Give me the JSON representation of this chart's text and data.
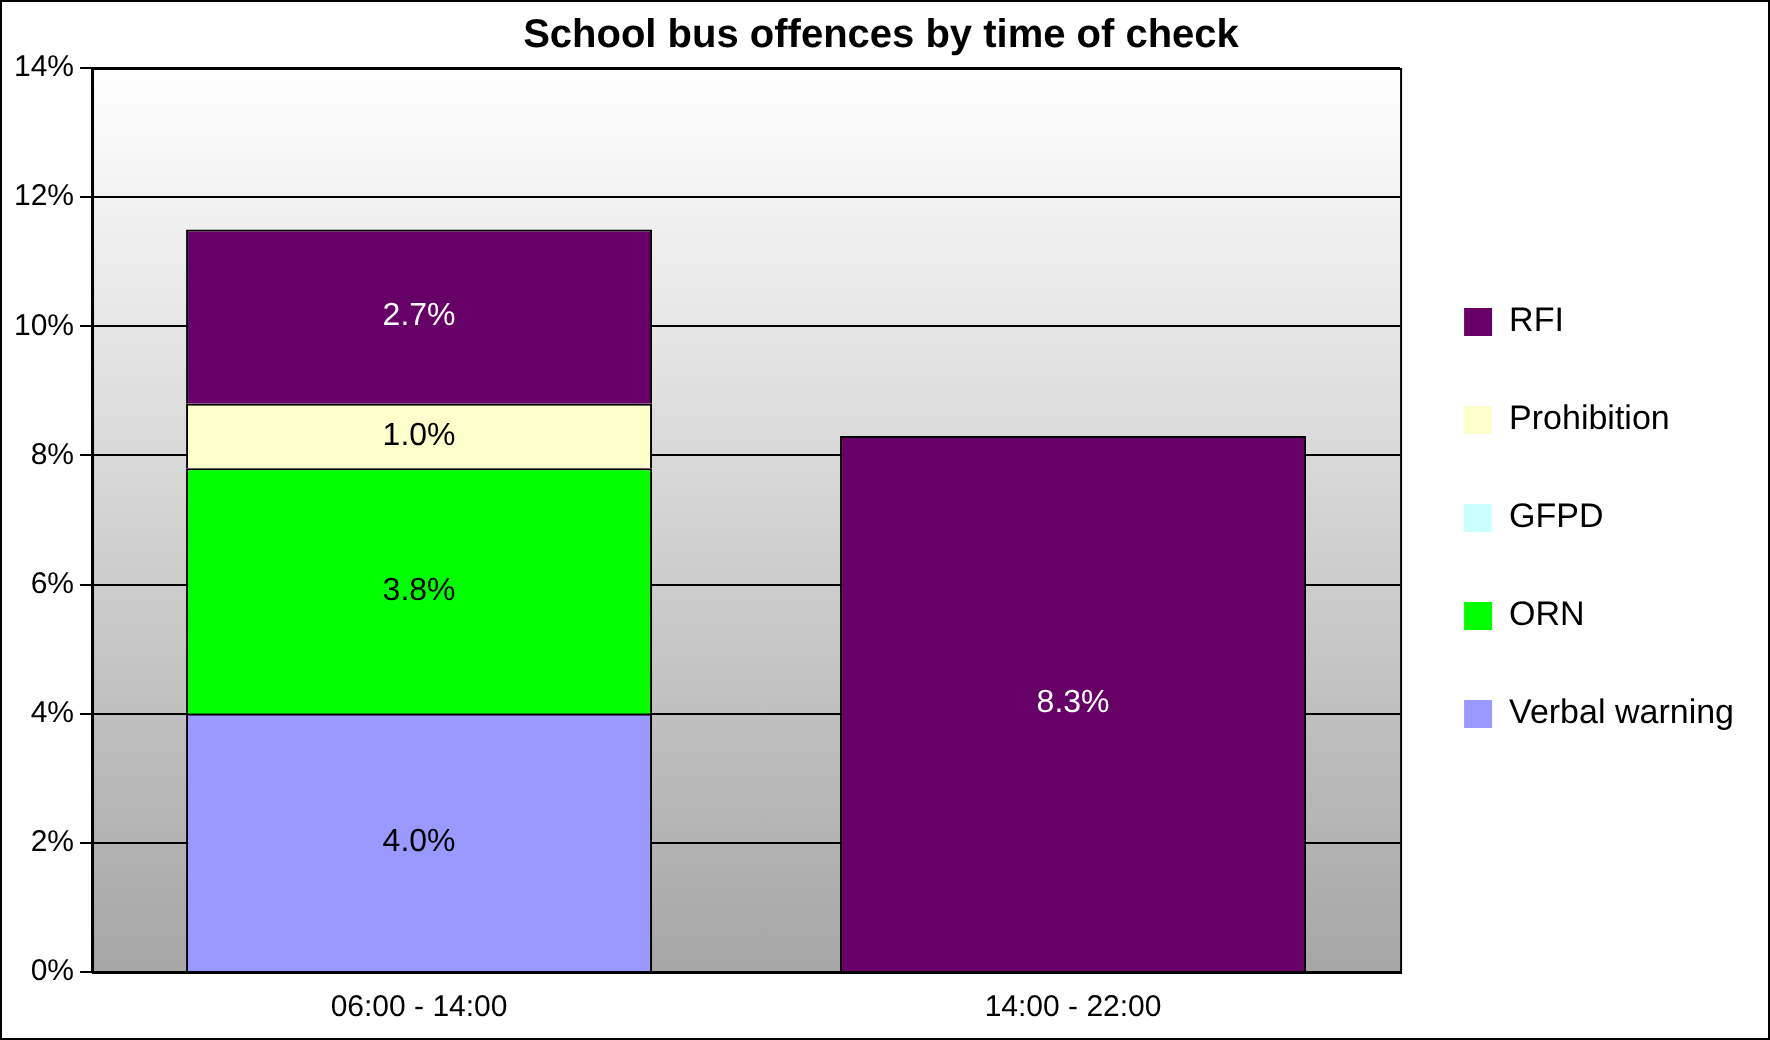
{
  "chart_data": {
    "type": "bar",
    "title": "School bus offences by time of check",
    "categories": [
      "06:00 - 14:00",
      "14:00 - 22:00"
    ],
    "stacked": true,
    "series": [
      {
        "name": "Verbal warning",
        "color": "#9999ff",
        "values": [
          4.0,
          null
        ],
        "value_labels": [
          "4.0%",
          null
        ]
      },
      {
        "name": "ORN",
        "color": "#00ff00",
        "values": [
          3.8,
          null
        ],
        "value_labels": [
          "3.8%",
          null
        ]
      },
      {
        "name": "GFPD",
        "color": "#ccffff",
        "values": [
          null,
          null
        ]
      },
      {
        "name": "Prohibition",
        "color": "#ffffcc",
        "values": [
          1.0,
          null
        ],
        "value_labels": [
          "1.0%",
          null
        ]
      },
      {
        "name": "RFI",
        "color": "#660066",
        "values": [
          2.7,
          8.3
        ],
        "value_labels": [
          "2.7%",
          "8.3%"
        ]
      }
    ],
    "ylim": [
      0,
      14
    ],
    "yticks": [
      {
        "value": 0,
        "label": "0%"
      },
      {
        "value": 2,
        "label": "2%"
      },
      {
        "value": 4,
        "label": "4%"
      },
      {
        "value": 6,
        "label": "6%"
      },
      {
        "value": 8,
        "label": "8%"
      },
      {
        "value": 10,
        "label": "10%"
      },
      {
        "value": 12,
        "label": "12%"
      },
      {
        "value": 14,
        "label": "14%"
      }
    ],
    "grid": "y",
    "legend": "right"
  }
}
